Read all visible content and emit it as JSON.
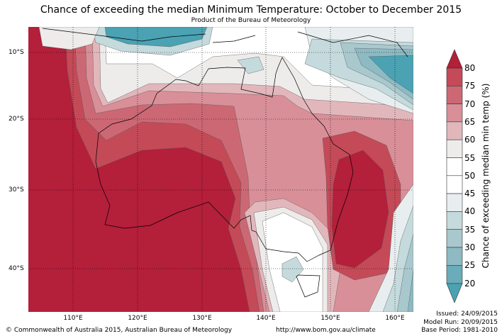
{
  "title": "Chance of exceeding the median Minimum Temperature: October to December 2015",
  "subtitle": "Product of the Bureau of Meteorology",
  "map": {
    "lat_labels": [
      "10°S",
      "20°S",
      "30°S",
      "40°S"
    ],
    "lon_labels": [
      "110°E",
      "120°E",
      "130°E",
      "140°E",
      "150°E",
      "160°E"
    ]
  },
  "colorbar": {
    "label": "Chance of exceeding median min temp (%)",
    "ticks": [
      "80",
      "75",
      "70",
      "65",
      "60",
      "55",
      "50",
      "45",
      "40",
      "35",
      "30",
      "25",
      "20"
    ],
    "colors": [
      "#b41f3a",
      "#c44a58",
      "#cc6874",
      "#d98f98",
      "#e2b7bc",
      "#eeecea",
      "#ffffff",
      "#ffffff",
      "#e8eef0",
      "#c5dadd",
      "#a8c8cd",
      "#8dbac3",
      "#6aacb9",
      "#4aa2b3"
    ]
  },
  "footer": {
    "copyright": "© Commonwealth of Australia 2015, Australian Bureau of Meteorology",
    "url": "http://www.bom.gov.au/climate",
    "issued": "Issued: 24/09/2015",
    "model_run": "Model Run: 20/09/2015",
    "base_period": "Base Period: 1981-2010"
  }
}
